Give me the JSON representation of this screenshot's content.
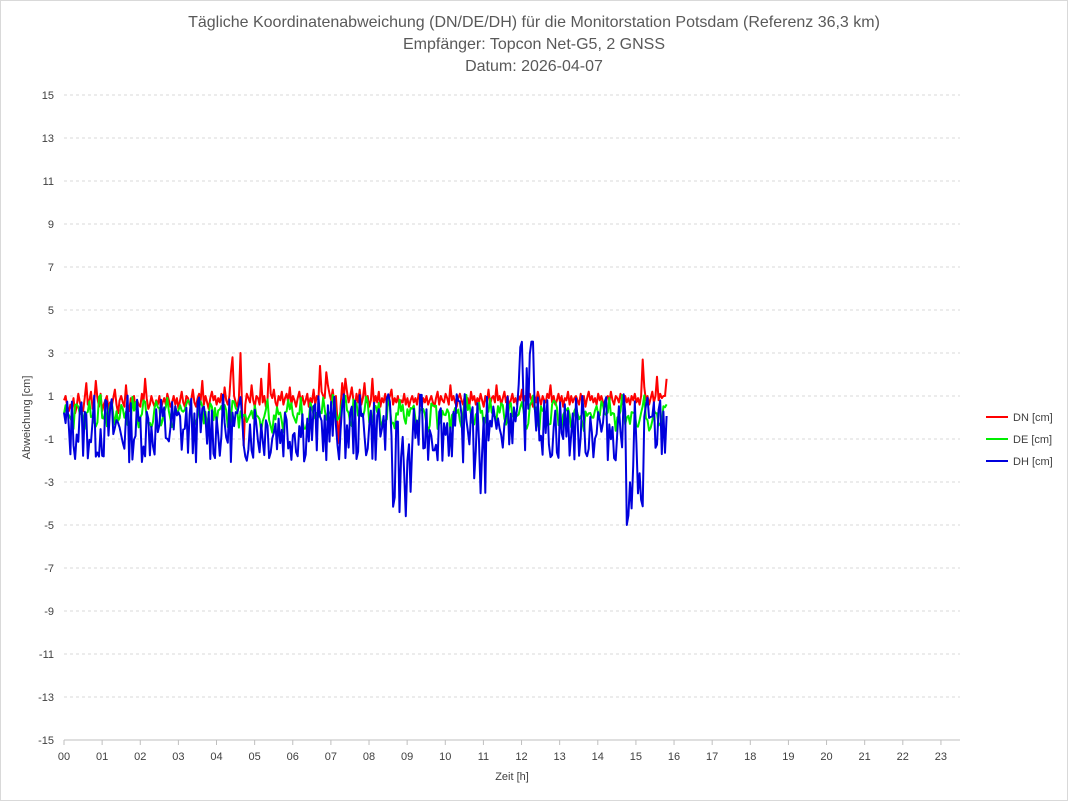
{
  "chart_data": {
    "type": "line",
    "title": "Tägliche Koordinatenabweichung (DN/DE/DH) für die Monitorstation Potsdam (Referenz 36,3 km)",
    "subtitle": "Empfänger: Topcon Net-G5, 2 GNSS",
    "subtitle2": "Datum: 2026-04-07",
    "xlabel": "Zeit [h]",
    "ylabel": "Abweichung [cm]",
    "xlim": [
      0,
      23.5
    ],
    "ylim": [
      -15,
      15
    ],
    "x_ticks": [
      "00",
      "01",
      "02",
      "03",
      "04",
      "05",
      "06",
      "07",
      "08",
      "09",
      "10",
      "11",
      "12",
      "13",
      "14",
      "15",
      "16",
      "17",
      "18",
      "19",
      "20",
      "21",
      "22",
      "23"
    ],
    "y_ticks": [
      "15",
      "13",
      "11",
      "9",
      "7",
      "5",
      "3",
      "1",
      "-1",
      "-3",
      "-5",
      "-7",
      "-9",
      "-11",
      "-13",
      "-15"
    ],
    "y_tick_values": [
      15,
      13,
      11,
      9,
      7,
      5,
      3,
      1,
      -1,
      -3,
      -5,
      -7,
      -9,
      -11,
      -13,
      -15
    ],
    "grid": true,
    "legend_position": "right",
    "x_step_h": 0.0417,
    "series": [
      {
        "name": "DN [cm]",
        "color": "#ff0000",
        "values": [
          0.8,
          1.0,
          0.5,
          0.3,
          0.6,
          0.4,
          0.9,
          0.2,
          0.5,
          1.1,
          0.7,
          0.4,
          0.3,
          0.9,
          1.6,
          0.6,
          0.8,
          1.2,
          0.4,
          0.7,
          1.7,
          0.9,
          0.5,
          1.1,
          0.3,
          0.6,
          0.8,
          1.0,
          0.4,
          0.7,
          0.5,
          0.9,
          1.3,
          0.6,
          0.2,
          0.8,
          1.0,
          0.7,
          0.5,
          1.5,
          0.6,
          0.3,
          0.9,
          0.7,
          1.0,
          0.4,
          0.8,
          0.6,
          0.5,
          1.1,
          0.7,
          1.8,
          0.9,
          0.4,
          0.6,
          1.0,
          0.7,
          0.5,
          0.8,
          0.6,
          1.0,
          0.4,
          0.7,
          0.9,
          0.6,
          1.1,
          0.8,
          0.5,
          0.7,
          1.0,
          0.6,
          0.9,
          0.4,
          0.8,
          1.2,
          0.7,
          0.5,
          1.0,
          0.9,
          0.6,
          0.8,
          1.3,
          0.7,
          0.5,
          0.9,
          1.1,
          0.8,
          1.7,
          0.6,
          1.0,
          0.7,
          0.4,
          0.9,
          1.2,
          0.8,
          1.0,
          0.6,
          0.9,
          0.7,
          1.1,
          0.5,
          1.4,
          0.8,
          0.6,
          1.0,
          2.1,
          2.8,
          1.0,
          0.7,
          0.5,
          0.9,
          3.0,
          0.4,
          -1.3,
          0.6,
          1.1,
          0.9,
          0.7,
          1.5,
          0.8,
          0.5,
          1.0,
          0.9,
          0.6,
          1.8,
          0.7,
          1.0,
          0.5,
          0.8,
          2.5,
          1.1,
          0.9,
          1.3,
          0.7,
          0.5,
          1.0,
          0.8,
          1.2,
          0.6,
          0.9,
          1.1,
          0.7,
          1.4,
          0.6,
          1.0,
          0.8,
          0.5,
          0.9,
          1.2,
          0.7,
          1.0,
          0.6,
          0.8,
          1.1,
          0.5,
          0.9,
          0.7,
          1.3,
          0.6,
          1.0,
          0.8,
          2.4,
          1.2,
          1.0,
          0.9,
          2.1,
          1.5,
          1.1,
          0.8,
          1.3,
          0.6,
          1.0,
          -0.2,
          -1.2,
          0.5,
          1.6,
          0.9,
          1.8,
          1.2,
          0.7,
          1.0,
          1.4,
          0.8,
          0.5,
          1.1,
          0.7,
          1.3,
          0.6,
          0.9,
          1.6,
          0.7,
          1.0,
          0.5,
          0.8,
          1.8,
          0.6,
          1.0,
          0.7,
          1.2,
          0.5,
          0.9,
          0.7,
          1.1,
          0.6,
          0.8,
          1.0,
          1.3,
          0.6,
          0.9,
          0.7,
          1.0,
          0.5,
          0.8,
          0.7,
          1.1,
          0.6,
          0.9,
          0.5,
          0.8,
          1.0,
          0.7,
          0.9,
          0.6,
          1.1,
          0.8,
          0.5,
          0.9,
          0.7,
          1.0,
          0.6,
          0.8,
          1.0,
          0.7,
          0.5,
          0.9,
          1.2,
          0.6,
          1.0,
          0.8,
          0.7,
          1.1,
          0.9,
          0.6,
          1.5,
          0.8,
          1.0,
          0.7,
          0.5,
          0.9,
          1.1,
          0.8,
          0.6,
          1.0,
          0.7,
          0.9,
          0.5,
          1.2,
          0.8,
          1.0,
          0.6,
          0.9,
          0.7,
          1.1,
          0.8,
          0.5,
          1.0,
          0.7,
          1.3,
          0.6,
          0.9,
          1.0,
          0.7,
          1.5,
          0.8,
          1.0,
          0.6,
          0.9,
          1.2,
          0.7,
          1.0,
          0.5,
          0.8,
          1.1,
          0.7,
          0.9,
          0.6,
          1.0,
          0.8,
          1.3,
          0.7,
          1.0,
          0.6,
          0.9,
          1.1,
          0.8,
          0.5,
          1.0,
          0.7,
          1.2,
          0.9,
          0.6,
          1.0,
          0.8,
          0.7,
          1.1,
          0.9,
          1.5,
          0.7,
          1.0,
          0.6,
          0.8,
          1.1,
          0.7,
          1.0,
          0.5,
          0.9,
          0.8,
          1.2,
          0.6,
          1.0,
          0.7,
          0.9,
          1.0,
          0.8,
          0.6,
          1.1,
          0.7,
          1.0,
          0.5,
          0.9,
          1.2,
          0.8,
          1.0,
          0.7,
          0.9,
          0.6,
          1.1,
          0.8,
          1.0,
          0.7,
          0.5,
          0.9,
          1.0,
          0.7,
          1.2,
          0.8,
          0.6,
          1.0,
          0.9,
          0.7,
          1.1,
          0.8,
          0.5,
          1.0,
          0.7,
          0.9,
          0.6,
          1.0,
          0.8,
          1.1,
          0.7,
          0.9,
          0.6,
          1.0,
          2.7,
          1.4,
          0.8,
          1.0,
          0.6,
          0.9,
          1.2,
          0.7,
          1.0,
          1.9,
          0.8,
          1.1,
          0.9,
          1.0,
          1.0,
          1.8
        ],
        "pattern_note": ""
      },
      {
        "name": "DE [cm]",
        "color": "#00ee00",
        "values": []
      },
      {
        "name": "DH [cm]",
        "color": "#0000dd",
        "values": []
      }
    ]
  }
}
